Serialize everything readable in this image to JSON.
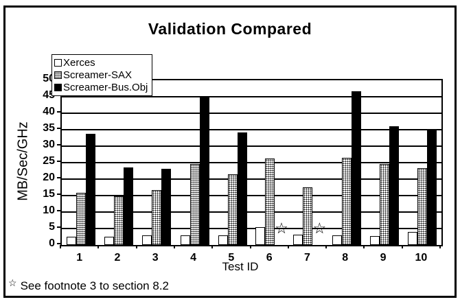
{
  "title": "Validation Compared",
  "y_axis": {
    "label": "MB/Sec/GHz"
  },
  "x_axis": {
    "label": "Test ID"
  },
  "legend": [
    {
      "label": "Xerces",
      "fill": "white"
    },
    {
      "label": "Screamer-SAX",
      "fill": "dots"
    },
    {
      "label": "Screamer-Bus.Obj",
      "fill": "black"
    }
  ],
  "footnote": {
    "star": "☆",
    "text": "See footnote 3 to section 8.2"
  },
  "colors": {
    "foreground": "#000000",
    "background": "#ffffff"
  },
  "chart_data": {
    "type": "bar",
    "title": "Validation Compared",
    "xlabel": "Test ID",
    "ylabel": "MB/Sec/GHz",
    "ylim": [
      0,
      50
    ],
    "ytick_step": 5,
    "grid": true,
    "legend_position": "top-left",
    "categories": [
      "1",
      "2",
      "3",
      "4",
      "5",
      "6",
      "7",
      "8",
      "9",
      "10"
    ],
    "series": [
      {
        "name": "Xerces",
        "fill": "white",
        "values": [
          2.5,
          2.4,
          3.0,
          3.0,
          2.9,
          5.5,
          3.2,
          3.0,
          2.8,
          3.9
        ]
      },
      {
        "name": "Screamer-SAX",
        "fill": "dots",
        "values": [
          15.8,
          14.7,
          16.7,
          24.6,
          21.4,
          26.3,
          17.5,
          26.5,
          24.5,
          23.3
        ]
      },
      {
        "name": "Screamer-Bus.Obj",
        "fill": "black",
        "values": [
          33.8,
          23.6,
          23.2,
          44.8,
          34.1,
          null,
          null,
          46.6,
          36.1,
          35.1
        ]
      }
    ],
    "missing_marker": "star",
    "missing_marker_glyph": "☆",
    "missing_marker_note": "See footnote 3 to section 8.2"
  }
}
